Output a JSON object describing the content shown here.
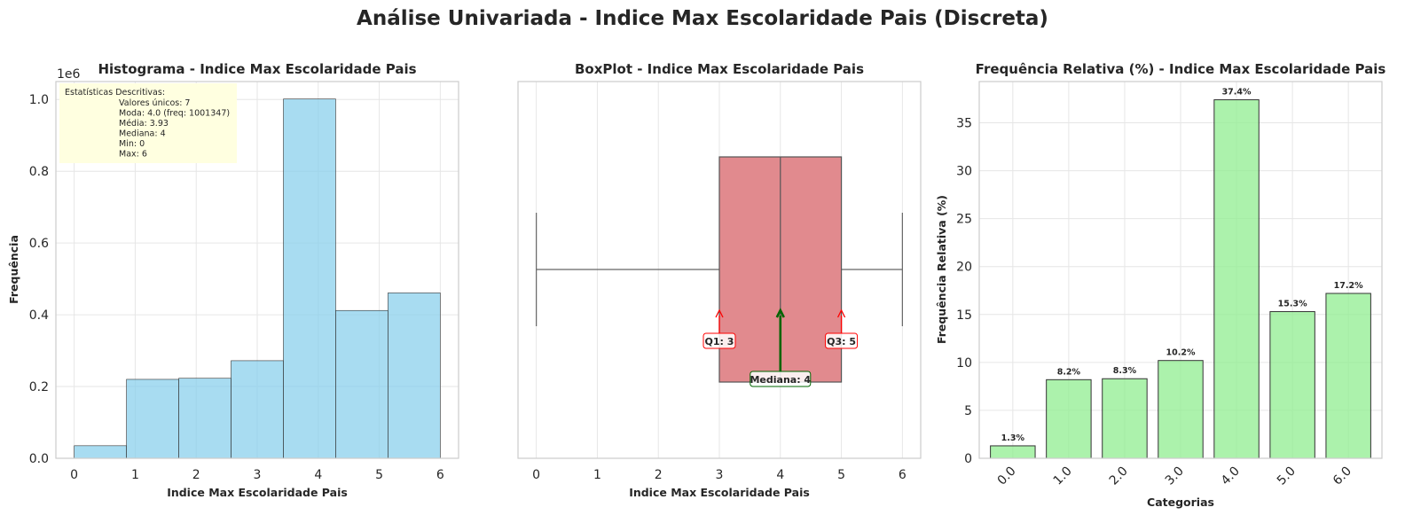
{
  "suptitle": "Análise Univariada - Indice Max Escolaridade Pais (Discreta)",
  "colors": {
    "hist": "#87ceeb",
    "box": "#d9696e",
    "bar": "#90ee90",
    "edge": "#333333",
    "quartile": "#ff0000",
    "median": "#006400",
    "stats_box": "#ffffe0"
  },
  "chart_data": [
    {
      "type": "bar",
      "title": "Histograma - Indice Max Escolaridade Pais",
      "xlabel": "Indice Max Escolaridade Pais",
      "ylabel": "Frequência",
      "y_offset_label": "1e6",
      "xlim": [
        -0.3,
        6.3
      ],
      "ylim": [
        0,
        1.05
      ],
      "xticks": [
        "0",
        "1",
        "2",
        "3",
        "4",
        "5",
        "6"
      ],
      "yticks": [
        "0.0",
        "0.2",
        "0.4",
        "0.6",
        "0.8",
        "1.0"
      ],
      "bin_edges": [
        0,
        0.857,
        1.714,
        2.571,
        3.429,
        4.286,
        5.143,
        6.0
      ],
      "values": [
        0.035,
        0.22,
        0.223,
        0.272,
        1.001347,
        0.412,
        0.461
      ],
      "grid": true,
      "stats_text": {
        "header": "Estatísticas Descritivas:",
        "lines": [
          "Valores únicos: 7",
          "Moda: 4.0 (freq: 1001347)",
          "Média: 3.93",
          "Mediana: 4",
          "Min: 0",
          "Max: 6"
        ]
      }
    },
    {
      "type": "box",
      "title": "BoxPlot - Indice Max Escolaridade Pais",
      "xlabel": "Indice Max Escolaridade Pais",
      "xlim": [
        -0.3,
        6.3
      ],
      "xticks": [
        "0",
        "1",
        "2",
        "3",
        "4",
        "5",
        "6"
      ],
      "min": 0,
      "q1": 3,
      "median": 4,
      "q3": 5,
      "max": 6,
      "grid": true,
      "annotations": {
        "q1": "Q1: 3",
        "median": "Mediana: 4",
        "q3": "Q3: 5"
      }
    },
    {
      "type": "bar",
      "title": "Frequência Relativa (%) - Indice Max Escolaridade Pais",
      "xlabel": "Categorias",
      "ylabel": "Frequência Relativa (%)",
      "categories": [
        "0.0",
        "1.0",
        "2.0",
        "3.0",
        "4.0",
        "5.0",
        "6.0"
      ],
      "values": [
        1.3,
        8.2,
        8.3,
        10.2,
        37.4,
        15.3,
        17.2
      ],
      "labels": [
        "1.3%",
        "8.2%",
        "8.3%",
        "10.2%",
        "37.4%",
        "15.3%",
        "17.2%"
      ],
      "ylim": [
        0,
        39.3
      ],
      "yticks": [
        "0",
        "5",
        "10",
        "15",
        "20",
        "25",
        "30",
        "35"
      ],
      "grid": true
    }
  ]
}
